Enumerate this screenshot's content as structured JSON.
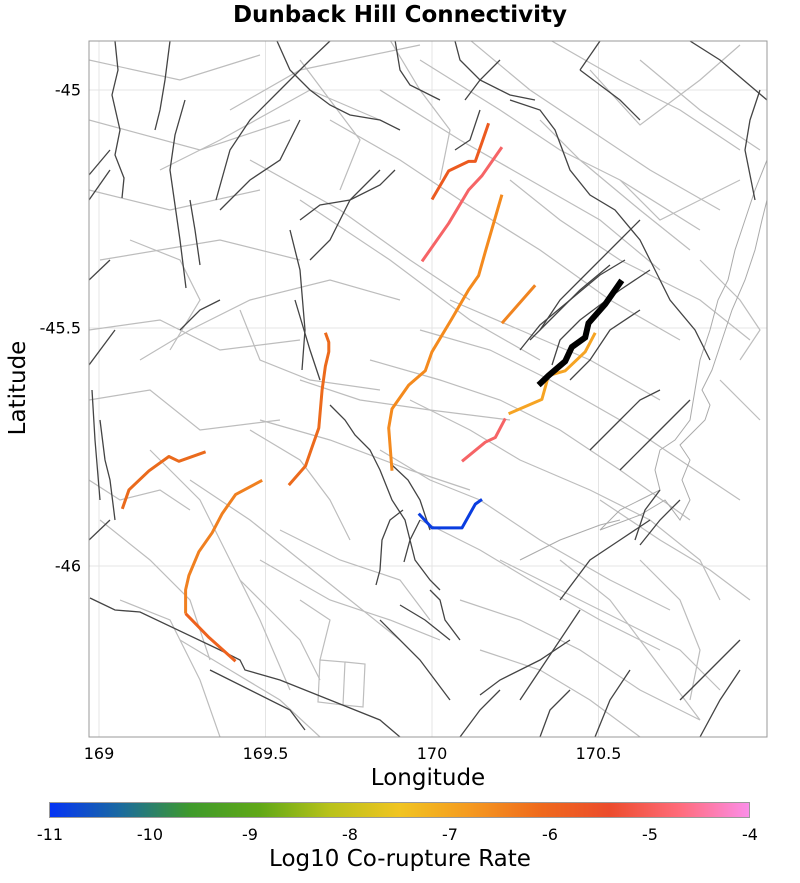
{
  "title": "Dunback Hill Connectivity",
  "x_axis": {
    "label": "Longitude",
    "ticks": [
      {
        "label": "169",
        "value": 169
      },
      {
        "label": "169.5",
        "value": 169.5
      },
      {
        "label": "170",
        "value": 170
      },
      {
        "label": "170.5",
        "value": 170.5
      }
    ]
  },
  "y_axis": {
    "label": "Latitude",
    "ticks": [
      {
        "label": "-45",
        "value": -45
      },
      {
        "label": "-45.5",
        "value": -45.5
      },
      {
        "label": "-46",
        "value": -46
      }
    ]
  },
  "colorbar": {
    "label": "Log10 Co-rupture Rate",
    "ticks": [
      "-11",
      "-10",
      "-9",
      "-8",
      "-7",
      "-6",
      "-5",
      "-4"
    ],
    "range": [
      -11,
      -4
    ],
    "stops": [
      "#0433f5",
      "#1a6aa0",
      "#3f9a2c",
      "#60a817",
      "#b8c21a",
      "#f1c421",
      "#f59a20",
      "#ef6a1c",
      "#ec4c2c",
      "#ff6b7a",
      "#fb8ee8"
    ]
  },
  "chart_data": {
    "type": "map",
    "title": "Dunback Hill Connectivity",
    "xlabel": "Longitude",
    "ylabel": "Latitude",
    "xlim": [
      168.97,
      171.0
    ],
    "ylim": [
      -46.36,
      -44.9
    ],
    "grid": true,
    "colorbar": {
      "label": "Log10 Co-rupture Rate",
      "range": [
        -11,
        -4
      ]
    },
    "target_fault": {
      "name": "Dunback Hill",
      "color": "#000000",
      "coords": [
        [
          170.32,
          -45.62
        ],
        [
          170.35,
          -45.6
        ],
        [
          170.4,
          -45.57
        ],
        [
          170.42,
          -45.54
        ],
        [
          170.46,
          -45.52
        ],
        [
          170.47,
          -45.49
        ],
        [
          170.52,
          -45.45
        ],
        [
          170.57,
          -45.4
        ]
      ]
    },
    "segments": [
      {
        "log10_rate": -6.0,
        "color": "#ec5a1f",
        "coords": [
          [
            170.0,
            -45.23
          ],
          [
            170.05,
            -45.17
          ],
          [
            170.11,
            -45.15
          ],
          [
            170.13,
            -45.15
          ],
          [
            170.15,
            -45.11
          ],
          [
            170.17,
            -45.07
          ]
        ]
      },
      {
        "log10_rate": -5.2,
        "color": "#f66466",
        "coords": [
          [
            169.97,
            -45.36
          ],
          [
            170.05,
            -45.28
          ],
          [
            170.11,
            -45.21
          ],
          [
            170.15,
            -45.18
          ],
          [
            170.21,
            -45.12
          ]
        ]
      },
      {
        "log10_rate": -6.5,
        "color": "#f48a1e",
        "coords": [
          [
            169.88,
            -45.8
          ],
          [
            169.87,
            -45.71
          ],
          [
            169.88,
            -45.67
          ],
          [
            169.93,
            -45.62
          ],
          [
            169.98,
            -45.59
          ],
          [
            170.0,
            -45.55
          ],
          [
            170.06,
            -45.48
          ],
          [
            170.11,
            -45.42
          ],
          [
            170.14,
            -45.39
          ],
          [
            170.16,
            -45.34
          ],
          [
            170.21,
            -45.22
          ]
        ]
      },
      {
        "log10_rate": -6.5,
        "color": "#f08420",
        "coords": [
          [
            170.21,
            -45.49
          ],
          [
            170.31,
            -45.41
          ]
        ]
      },
      {
        "log10_rate": -6.8,
        "color": "#f6a423",
        "coords": [
          [
            170.23,
            -45.68
          ],
          [
            170.33,
            -45.65
          ],
          [
            170.35,
            -45.6
          ],
          [
            170.4,
            -45.59
          ],
          [
            170.46,
            -45.55
          ],
          [
            170.49,
            -45.51
          ]
        ]
      },
      {
        "log10_rate": -5.2,
        "color": "#f66466",
        "coords": [
          [
            170.09,
            -45.78
          ],
          [
            170.16,
            -45.74
          ],
          [
            170.19,
            -45.73
          ],
          [
            170.22,
            -45.69
          ]
        ]
      },
      {
        "log10_rate": -11.0,
        "color": "#0a3de0",
        "coords": [
          [
            169.96,
            -45.89
          ],
          [
            170.0,
            -45.92
          ],
          [
            170.04,
            -45.92
          ],
          [
            170.09,
            -45.92
          ],
          [
            170.13,
            -45.87
          ],
          [
            170.15,
            -45.86
          ]
        ]
      },
      {
        "log10_rate": -6.2,
        "color": "#ec6a1c",
        "coords": [
          [
            169.57,
            -45.83
          ],
          [
            169.62,
            -45.79
          ],
          [
            169.64,
            -45.75
          ],
          [
            169.66,
            -45.71
          ],
          [
            169.67,
            -45.63
          ],
          [
            169.68,
            -45.58
          ],
          [
            169.69,
            -45.55
          ],
          [
            169.69,
            -45.53
          ],
          [
            169.68,
            -45.51
          ]
        ]
      },
      {
        "log10_rate": -6.2,
        "color": "#ea6a1c",
        "coords": [
          [
            169.07,
            -45.88
          ],
          [
            169.09,
            -45.84
          ],
          [
            169.15,
            -45.8
          ],
          [
            169.21,
            -45.77
          ],
          [
            169.24,
            -45.78
          ],
          [
            169.32,
            -45.76
          ]
        ]
      },
      {
        "log10_rate": -6.4,
        "color": "#f08020",
        "coords": [
          [
            169.26,
            -46.1
          ],
          [
            169.26,
            -46.05
          ],
          [
            169.27,
            -46.02
          ],
          [
            169.3,
            -45.97
          ],
          [
            169.34,
            -45.93
          ],
          [
            169.37,
            -45.89
          ],
          [
            169.41,
            -45.85
          ],
          [
            169.49,
            -45.82
          ]
        ]
      },
      {
        "log10_rate": -6.1,
        "color": "#ee621e",
        "coords": [
          [
            169.26,
            -46.1
          ],
          [
            169.33,
            -46.15
          ],
          [
            169.41,
            -46.2
          ]
        ]
      }
    ]
  }
}
